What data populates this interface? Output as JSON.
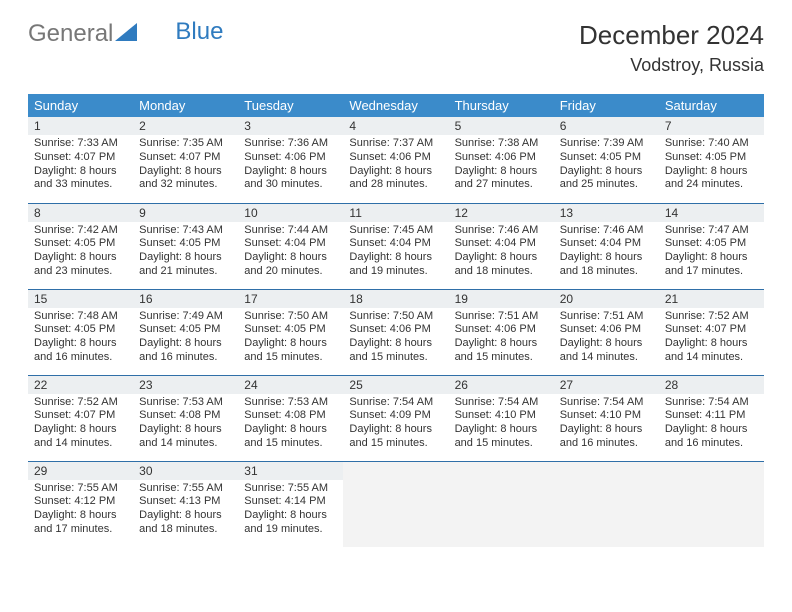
{
  "brand": {
    "part1": "General",
    "part2": "Blue"
  },
  "title": {
    "month": "December 2024",
    "location": "Vodstroy, Russia"
  },
  "colors": {
    "header_bg": "#3b8bca",
    "header_text": "#ffffff",
    "daynum_bg": "#eceff1",
    "row_border": "#2f6fa8",
    "empty_bg": "#f3f3f3",
    "logo_accent": "#2f7bbf"
  },
  "weekdays": [
    "Sunday",
    "Monday",
    "Tuesday",
    "Wednesday",
    "Thursday",
    "Friday",
    "Saturday"
  ],
  "days": [
    {
      "n": 1,
      "sunrise": "7:33 AM",
      "sunset": "4:07 PM",
      "daylight": "8 hours and 33 minutes."
    },
    {
      "n": 2,
      "sunrise": "7:35 AM",
      "sunset": "4:07 PM",
      "daylight": "8 hours and 32 minutes."
    },
    {
      "n": 3,
      "sunrise": "7:36 AM",
      "sunset": "4:06 PM",
      "daylight": "8 hours and 30 minutes."
    },
    {
      "n": 4,
      "sunrise": "7:37 AM",
      "sunset": "4:06 PM",
      "daylight": "8 hours and 28 minutes."
    },
    {
      "n": 5,
      "sunrise": "7:38 AM",
      "sunset": "4:06 PM",
      "daylight": "8 hours and 27 minutes."
    },
    {
      "n": 6,
      "sunrise": "7:39 AM",
      "sunset": "4:05 PM",
      "daylight": "8 hours and 25 minutes."
    },
    {
      "n": 7,
      "sunrise": "7:40 AM",
      "sunset": "4:05 PM",
      "daylight": "8 hours and 24 minutes."
    },
    {
      "n": 8,
      "sunrise": "7:42 AM",
      "sunset": "4:05 PM",
      "daylight": "8 hours and 23 minutes."
    },
    {
      "n": 9,
      "sunrise": "7:43 AM",
      "sunset": "4:05 PM",
      "daylight": "8 hours and 21 minutes."
    },
    {
      "n": 10,
      "sunrise": "7:44 AM",
      "sunset": "4:04 PM",
      "daylight": "8 hours and 20 minutes."
    },
    {
      "n": 11,
      "sunrise": "7:45 AM",
      "sunset": "4:04 PM",
      "daylight": "8 hours and 19 minutes."
    },
    {
      "n": 12,
      "sunrise": "7:46 AM",
      "sunset": "4:04 PM",
      "daylight": "8 hours and 18 minutes."
    },
    {
      "n": 13,
      "sunrise": "7:46 AM",
      "sunset": "4:04 PM",
      "daylight": "8 hours and 18 minutes."
    },
    {
      "n": 14,
      "sunrise": "7:47 AM",
      "sunset": "4:05 PM",
      "daylight": "8 hours and 17 minutes."
    },
    {
      "n": 15,
      "sunrise": "7:48 AM",
      "sunset": "4:05 PM",
      "daylight": "8 hours and 16 minutes."
    },
    {
      "n": 16,
      "sunrise": "7:49 AM",
      "sunset": "4:05 PM",
      "daylight": "8 hours and 16 minutes."
    },
    {
      "n": 17,
      "sunrise": "7:50 AM",
      "sunset": "4:05 PM",
      "daylight": "8 hours and 15 minutes."
    },
    {
      "n": 18,
      "sunrise": "7:50 AM",
      "sunset": "4:06 PM",
      "daylight": "8 hours and 15 minutes."
    },
    {
      "n": 19,
      "sunrise": "7:51 AM",
      "sunset": "4:06 PM",
      "daylight": "8 hours and 15 minutes."
    },
    {
      "n": 20,
      "sunrise": "7:51 AM",
      "sunset": "4:06 PM",
      "daylight": "8 hours and 14 minutes."
    },
    {
      "n": 21,
      "sunrise": "7:52 AM",
      "sunset": "4:07 PM",
      "daylight": "8 hours and 14 minutes."
    },
    {
      "n": 22,
      "sunrise": "7:52 AM",
      "sunset": "4:07 PM",
      "daylight": "8 hours and 14 minutes."
    },
    {
      "n": 23,
      "sunrise": "7:53 AM",
      "sunset": "4:08 PM",
      "daylight": "8 hours and 14 minutes."
    },
    {
      "n": 24,
      "sunrise": "7:53 AM",
      "sunset": "4:08 PM",
      "daylight": "8 hours and 15 minutes."
    },
    {
      "n": 25,
      "sunrise": "7:54 AM",
      "sunset": "4:09 PM",
      "daylight": "8 hours and 15 minutes."
    },
    {
      "n": 26,
      "sunrise": "7:54 AM",
      "sunset": "4:10 PM",
      "daylight": "8 hours and 15 minutes."
    },
    {
      "n": 27,
      "sunrise": "7:54 AM",
      "sunset": "4:10 PM",
      "daylight": "8 hours and 16 minutes."
    },
    {
      "n": 28,
      "sunrise": "7:54 AM",
      "sunset": "4:11 PM",
      "daylight": "8 hours and 16 minutes."
    },
    {
      "n": 29,
      "sunrise": "7:55 AM",
      "sunset": "4:12 PM",
      "daylight": "8 hours and 17 minutes."
    },
    {
      "n": 30,
      "sunrise": "7:55 AM",
      "sunset": "4:13 PM",
      "daylight": "8 hours and 18 minutes."
    },
    {
      "n": 31,
      "sunrise": "7:55 AM",
      "sunset": "4:14 PM",
      "daylight": "8 hours and 19 minutes."
    }
  ],
  "labels": {
    "sunrise": "Sunrise:",
    "sunset": "Sunset:",
    "daylight": "Daylight:"
  }
}
